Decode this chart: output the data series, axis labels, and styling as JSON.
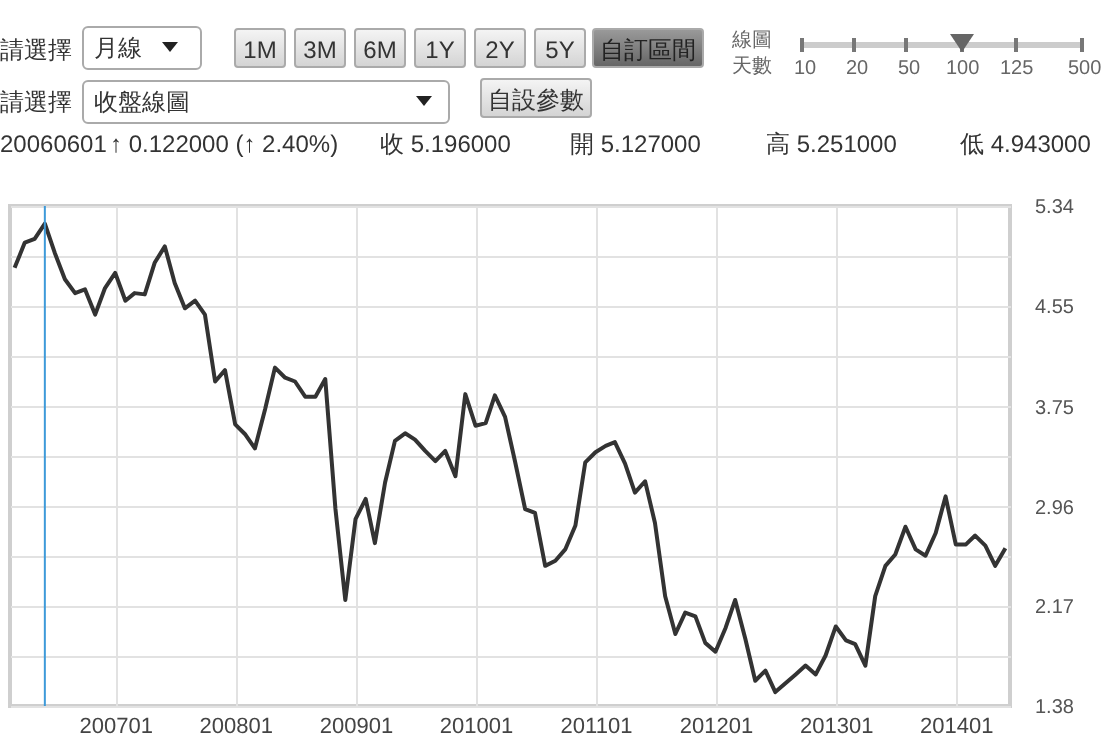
{
  "chart_data": {
    "type": "line",
    "annotations": [
      "請選擇",
      "月線",
      "1M",
      "3M",
      "6M",
      "1Y",
      "2Y",
      "5Y",
      "自訂區間",
      "線圖",
      "天數",
      "10",
      "20",
      "50",
      "100",
      "125",
      "500",
      "請選擇",
      "收盤線圖",
      "自設參數",
      "20060601",
      "↑ 0.122000 (↑ 2.40%)",
      "收 5.196000",
      "開 5.127000",
      "高 5.251000",
      "低 4.943000"
    ],
    "x": [
      "2006-03",
      "2006-04",
      "2006-05",
      "2006-06",
      "2006-07",
      "2006-08",
      "2006-09",
      "2006-10",
      "2006-11",
      "2006-12",
      "2007-01",
      "2007-02",
      "2007-03",
      "2007-04",
      "2007-05",
      "2007-06",
      "2007-07",
      "2007-08",
      "2007-09",
      "2007-10",
      "2007-11",
      "2007-12",
      "2008-01",
      "2008-02",
      "2008-03",
      "2008-04",
      "2008-05",
      "2008-06",
      "2008-07",
      "2008-08",
      "2008-09",
      "2008-10",
      "2008-11",
      "2008-12",
      "2009-01",
      "2009-02",
      "2009-03",
      "2009-04",
      "2009-05",
      "2009-06",
      "2009-07",
      "2009-08",
      "2009-09",
      "2009-10",
      "2009-11",
      "2009-12",
      "2010-01",
      "2010-02",
      "2010-03",
      "2010-04",
      "2010-05",
      "2010-06",
      "2010-07",
      "2010-08",
      "2010-09",
      "2010-10",
      "2010-11",
      "2010-12",
      "2011-01",
      "2011-02",
      "2011-03",
      "2011-04",
      "2011-05",
      "2011-06",
      "2011-07",
      "2011-08",
      "2011-09",
      "2011-10",
      "2011-11",
      "2011-12",
      "2012-01",
      "2012-02",
      "2012-03",
      "2012-04",
      "2012-05",
      "2012-06",
      "2012-07",
      "2012-08",
      "2012-09",
      "2012-10",
      "2012-11",
      "2012-12",
      "2013-01",
      "2013-02",
      "2013-03",
      "2013-04",
      "2013-05",
      "2013-06",
      "2013-07",
      "2013-08",
      "2013-09",
      "2013-10",
      "2013-11",
      "2013-12",
      "2014-01",
      "2014-02",
      "2014-03",
      "2014-04",
      "2014-05",
      "2014-06"
    ],
    "series": [
      {
        "color": "#333333",
        "values": [
          4.85,
          5.05,
          5.08,
          5.2,
          4.97,
          4.76,
          4.65,
          4.68,
          4.48,
          4.69,
          4.81,
          4.59,
          4.65,
          4.64,
          4.89,
          5.02,
          4.73,
          4.53,
          4.59,
          4.48,
          3.95,
          4.04,
          3.61,
          3.53,
          3.42,
          3.73,
          4.06,
          3.98,
          3.95,
          3.83,
          3.83,
          3.97,
          2.94,
          2.22,
          2.86,
          3.02,
          2.67,
          3.15,
          3.48,
          3.54,
          3.49,
          3.4,
          3.32,
          3.4,
          3.2,
          3.85,
          3.6,
          3.62,
          3.84,
          3.67,
          3.32,
          2.94,
          2.91,
          2.49,
          2.53,
          2.62,
          2.81,
          3.31,
          3.39,
          3.44,
          3.47,
          3.3,
          3.07,
          3.16,
          2.83,
          2.25,
          1.95,
          2.12,
          2.09,
          1.88,
          1.81,
          2.0,
          2.22,
          1.91,
          1.58,
          1.66,
          1.49,
          1.56,
          1.63,
          1.7,
          1.63,
          1.78,
          2.01,
          1.9,
          1.87,
          1.7,
          2.25,
          2.49,
          2.58,
          2.8,
          2.62,
          2.57,
          2.75,
          3.04,
          2.66,
          2.66,
          2.73,
          2.65,
          2.49,
          2.63
        ]
      }
    ],
    "xlim": [
      "2006-02-15",
      "2014-06-15"
    ],
    "xticks": [
      {
        "value": "2007-01",
        "label": "200701"
      },
      {
        "value": "2008-01",
        "label": "200801"
      },
      {
        "value": "2009-01",
        "label": "200901"
      },
      {
        "value": "2010-01",
        "label": "201001"
      },
      {
        "value": "2011-01",
        "label": "201101"
      },
      {
        "value": "2012-01",
        "label": "201201"
      },
      {
        "value": "2013-01",
        "label": "201301"
      },
      {
        "value": "2014-01",
        "label": "201401"
      }
    ],
    "ylim": [
      1.38,
      5.34
    ],
    "yticks": [
      1.38,
      {
        "value": 1.775,
        "label": null
      },
      2.17,
      {
        "value": 2.565,
        "label": null
      },
      2.96,
      {
        "value": 3.355,
        "label": null
      },
      3.75,
      {
        "value": 4.15,
        "label": null
      },
      4.55,
      {
        "value": 4.945,
        "label": null
      },
      5.34
    ],
    "ref_lines": [
      {
        "axis": "x",
        "value": "2006-06",
        "color": "#3d9ad9"
      }
    ],
    "grid": true
  }
}
